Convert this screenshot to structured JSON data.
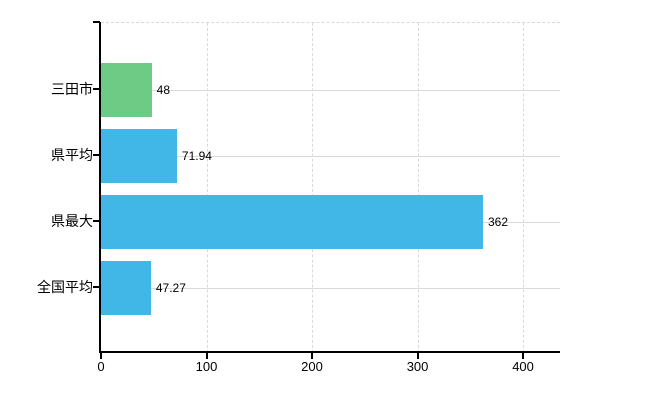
{
  "chart_data": {
    "type": "bar",
    "orientation": "horizontal",
    "title": "",
    "xlabel": "",
    "ylabel": "",
    "categories": [
      "三田市",
      "県平均",
      "県最大",
      "全国平均"
    ],
    "values": [
      48,
      71.94,
      362,
      47.27
    ],
    "value_labels": [
      "48",
      "71.94",
      "362",
      "47.27"
    ],
    "bar_colors": [
      "#6ecb86",
      "#41b7e8",
      "#41b7e8",
      "#41b7e8"
    ],
    "x_ticks": [
      0,
      100,
      200,
      300,
      400
    ],
    "xlim": [
      0,
      435
    ],
    "grid": true,
    "legend": "none",
    "background_color": "#ffffff",
    "axis_color": "#000000",
    "grid_color": "#d9d9d9",
    "text_color": "#000000"
  }
}
